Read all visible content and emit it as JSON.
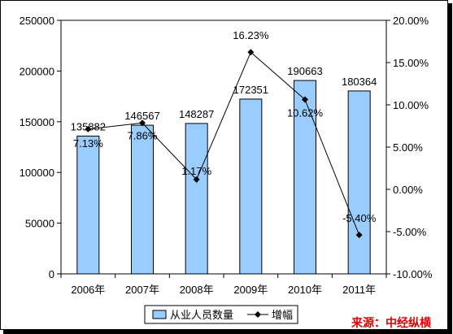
{
  "chart_data": {
    "type": "bar",
    "categories": [
      "2006年",
      "2007年",
      "2008年",
      "2009年",
      "2010年",
      "2011年"
    ],
    "series": [
      {
        "name": "从业人员数量",
        "type": "bar",
        "axis": "left",
        "values": [
          135882,
          146567,
          148287,
          172351,
          190663,
          180364
        ],
        "labels": [
          "135882",
          "146567",
          "148287",
          "172351",
          "190663",
          "180364"
        ],
        "color": "#99ccff"
      },
      {
        "name": "增幅",
        "type": "line",
        "axis": "right",
        "values": [
          7.13,
          7.86,
          1.17,
          16.23,
          10.62,
          -5.4
        ],
        "labels": [
          "7.13%",
          "7.86%",
          "1.17%",
          "16.23%",
          "10.62%",
          "-5.40%"
        ],
        "color": "#000000"
      }
    ],
    "y_left": {
      "range": [
        0,
        250000
      ],
      "ticks": [
        "0",
        "50000",
        "100000",
        "150000",
        "200000",
        "250000"
      ]
    },
    "y_right": {
      "range": [
        -10,
        20
      ],
      "ticks": [
        "-10.00%",
        "-5.00%",
        "0.00%",
        "5.00%",
        "10.00%",
        "15.00%",
        "20.00%"
      ]
    },
    "grid": false,
    "legend_position": "bottom"
  },
  "source_label": "来源：中经纵横"
}
